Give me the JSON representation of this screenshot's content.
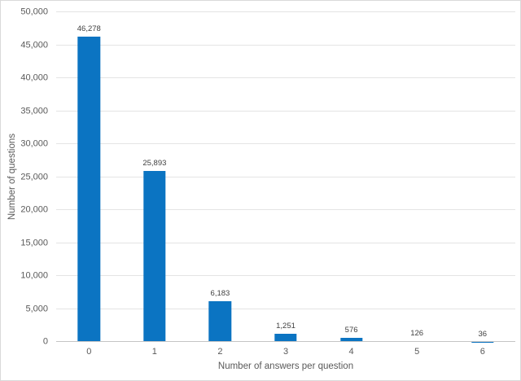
{
  "chart_data": {
    "type": "bar",
    "title": "",
    "xlabel": "Number of answers per question",
    "ylabel": "Number of questions",
    "categories": [
      "0",
      "1",
      "2",
      "3",
      "4",
      "5",
      "6"
    ],
    "values": [
      46278,
      25893,
      6183,
      1251,
      576,
      126,
      36
    ],
    "bar_labels": [
      "46,278",
      "25,893",
      "6,183",
      "1,251",
      "576",
      "126",
      "36"
    ],
    "ylim": [
      0,
      50000
    ],
    "ytick_step": 5000,
    "ytick_labels": [
      "0",
      "5,000",
      "10,000",
      "15,000",
      "20,000",
      "25,000",
      "30,000",
      "35,000",
      "40,000",
      "45,000",
      "50,000"
    ],
    "grid": true,
    "legend": false
  },
  "colors": {
    "bar": "#0B74C2",
    "gridline": "#E4E4E4",
    "axis_line": "#C5C5C5",
    "tick_text": "#595959",
    "axis_title_text": "#595959",
    "data_label_text": "#404040",
    "border": "#D9D9D9",
    "background": "#FFFFFF"
  }
}
